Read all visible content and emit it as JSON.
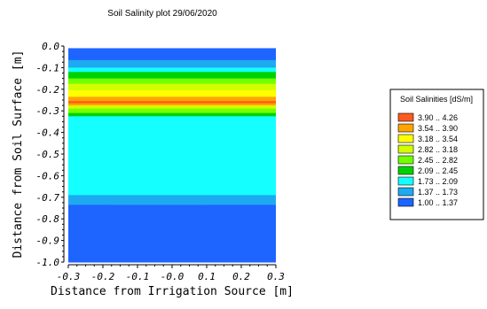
{
  "chart_data": {
    "type": "heatmap",
    "title": "Soil Salinity plot 29/06/2020",
    "xlabel": "Distance from Irrigation Source [m]",
    "ylabel": "Distance from Soil Surface [m]",
    "xlim": [
      -0.3,
      0.3
    ],
    "ylim": [
      -1.0,
      0.0
    ],
    "x_ticks": [
      "-0.3",
      "-0.2",
      "-0.1",
      "-0.0",
      "0.1",
      "0.2",
      "0.3"
    ],
    "x_tick_values": [
      -0.3,
      -0.2,
      -0.1,
      0.0,
      0.1,
      0.2,
      0.3
    ],
    "y_ticks": [
      "0.0",
      "-0.1",
      "-0.2",
      "-0.3",
      "-0.4",
      "-0.5",
      "-0.6",
      "-0.7",
      "-0.8",
      "-0.9",
      "-1.0"
    ],
    "y_tick_values": [
      0.0,
      -0.1,
      -0.2,
      -0.3,
      -0.4,
      -0.5,
      -0.6,
      -0.7,
      -0.8,
      -0.9,
      -1.0
    ],
    "legend": {
      "title": "Soil Salinities [dS/m]",
      "placement": "right",
      "entries": [
        {
          "label": "3.90 .. 4.26",
          "color": "#ff5a1e"
        },
        {
          "label": "3.54 .. 3.90",
          "color": "#ffa500"
        },
        {
          "label": "3.18 .. 3.54",
          "color": "#ffff00"
        },
        {
          "label": "2.82 .. 3.18",
          "color": "#d2ff00"
        },
        {
          "label": "2.45 .. 2.82",
          "color": "#73ff00"
        },
        {
          "label": "2.09 .. 2.45",
          "color": "#00d200"
        },
        {
          "label": "1.73 .. 2.09",
          "color": "#14ffff"
        },
        {
          "label": "1.37 .. 1.73",
          "color": "#1eaaf0"
        },
        {
          "label": "1.00 .. 1.37",
          "color": "#1e64ff"
        }
      ]
    },
    "bands": [
      {
        "class": 8,
        "y_top": -0.01,
        "y_bottom": -0.065
      },
      {
        "class": 7,
        "y_top": -0.065,
        "y_bottom": -0.1
      },
      {
        "class": 6,
        "y_top": -0.1,
        "y_bottom": -0.12
      },
      {
        "class": 5,
        "y_top": -0.12,
        "y_bottom": -0.15
      },
      {
        "class": 4,
        "y_top": -0.15,
        "y_bottom": -0.175
      },
      {
        "class": 3,
        "y_top": -0.175,
        "y_bottom": -0.205
      },
      {
        "class": 2,
        "y_top": -0.205,
        "y_bottom": -0.235
      },
      {
        "class": 1,
        "y_top": -0.235,
        "y_bottom": -0.255
      },
      {
        "class": 0,
        "y_top": -0.255,
        "y_bottom": -0.265
      },
      {
        "class": 1,
        "y_top": -0.265,
        "y_bottom": -0.275
      },
      {
        "class": 3,
        "y_top": -0.275,
        "y_bottom": -0.29
      },
      {
        "class": 4,
        "y_top": -0.29,
        "y_bottom": -0.31
      },
      {
        "class": 5,
        "y_top": -0.31,
        "y_bottom": -0.325
      },
      {
        "class": 6,
        "y_top": -0.325,
        "y_bottom": -0.69
      },
      {
        "class": 7,
        "y_top": -0.69,
        "y_bottom": -0.735
      },
      {
        "class": 8,
        "y_top": -0.735,
        "y_bottom": -1.0
      }
    ],
    "grid": false
  }
}
